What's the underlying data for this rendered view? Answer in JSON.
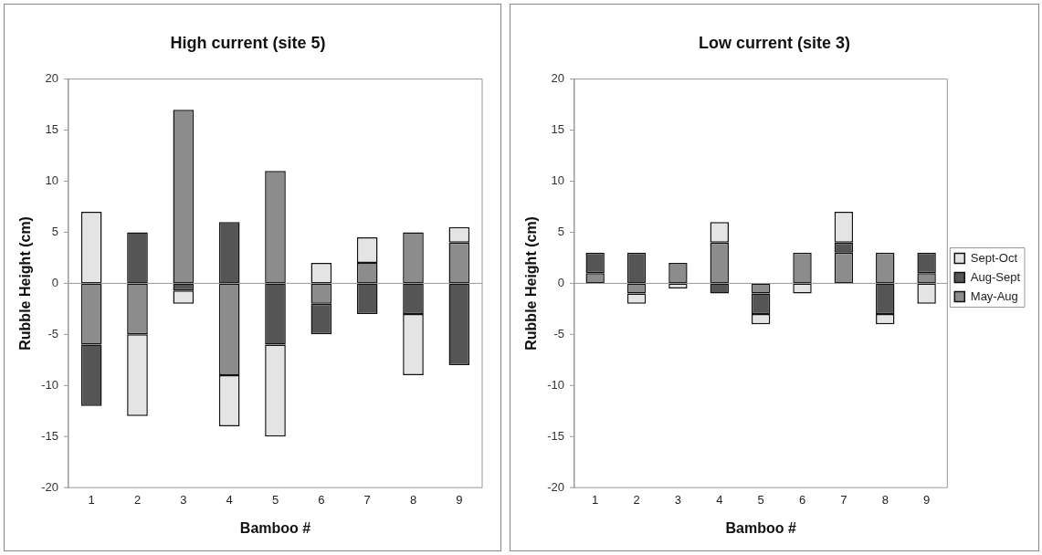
{
  "chart_data": [
    {
      "type": "bar",
      "title": "High current (site 5)",
      "xlabel": "Bamboo #",
      "ylabel": "Rubble Height (cm)",
      "stacked": true,
      "categories": [
        "1",
        "2",
        "3",
        "4",
        "5",
        "6",
        "7",
        "8",
        "9"
      ],
      "ylim": [
        -20,
        20
      ],
      "yticks": [
        -20,
        -15,
        -10,
        -5,
        0,
        5,
        10,
        15,
        20
      ],
      "grid": false,
      "legend": false,
      "ref_lines": [
        {
          "axis": "y",
          "value": 0
        }
      ],
      "series": [
        {
          "color": "#8c8c8c",
          "values": [
            -6,
            -5,
            17,
            -9,
            11,
            -2,
            2,
            5,
            4
          ]
        },
        {
          "color": "#555555",
          "values": [
            -6,
            5,
            -0.7,
            6,
            -6,
            -3,
            -3,
            -3,
            -8
          ]
        },
        {
          "color": "#e4e4e4",
          "values": [
            7,
            -8,
            -1.3,
            -5,
            -9,
            2,
            2.5,
            -6,
            1.5
          ]
        }
      ]
    },
    {
      "type": "bar",
      "title": "Low current (site 3)",
      "xlabel": "Bamboo #",
      "ylabel": "Rubble Height (cm)",
      "stacked": true,
      "categories": [
        "1",
        "2",
        "3",
        "4",
        "5",
        "6",
        "7",
        "8",
        "9"
      ],
      "ylim": [
        -20,
        20
      ],
      "yticks": [
        -20,
        -15,
        -10,
        -5,
        0,
        5,
        10,
        15,
        20
      ],
      "grid": false,
      "legend": "right",
      "ref_lines": [
        {
          "axis": "y",
          "value": 0
        }
      ],
      "series": [
        {
          "name": "May-Aug",
          "color": "#8c8c8c",
          "values": [
            1,
            -1,
            2,
            4,
            -1,
            3,
            3,
            3,
            1
          ]
        },
        {
          "name": "Aug-Sept",
          "color": "#555555",
          "values": [
            2,
            3,
            null,
            -1,
            -2,
            null,
            1,
            -3,
            2
          ]
        },
        {
          "name": "Sept-Oct",
          "color": "#e4e4e4",
          "values": [
            null,
            -1,
            -0.5,
            2,
            -1,
            -1,
            3,
            -1,
            -2
          ]
        }
      ]
    }
  ]
}
